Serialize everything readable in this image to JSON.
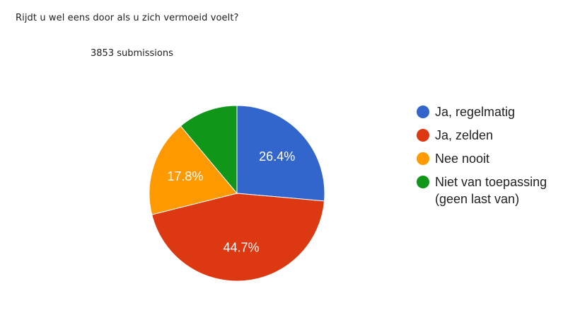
{
  "question": "Rijdt u wel eens door als u zich vermoeid voelt?",
  "submissions_label": "3853 submissions",
  "legend": [
    {
      "label": "Ja, regelmatig",
      "color": "#3366cc"
    },
    {
      "label": "Ja, zelden",
      "color": "#dc3912"
    },
    {
      "label": "Nee nooit",
      "color": "#ff9900"
    },
    {
      "label": "Niet van toepassing\n(geen last van)",
      "color": "#109618"
    }
  ],
  "slice_labels": [
    "26.4%",
    "44.7%",
    "17.8%",
    ""
  ],
  "chart_data": {
    "type": "pie",
    "title": "Rijdt u wel eens door als u zich vermoeid voelt?",
    "subtitle": "3853 submissions",
    "categories": [
      "Ja, regelmatig",
      "Ja, zelden",
      "Nee nooit",
      "Niet van toepassing (geen last van)"
    ],
    "values": [
      26.4,
      44.7,
      17.8,
      11.1
    ],
    "colors": [
      "#3366cc",
      "#dc3912",
      "#ff9900",
      "#109618"
    ],
    "unit": "%",
    "legend_position": "right"
  }
}
